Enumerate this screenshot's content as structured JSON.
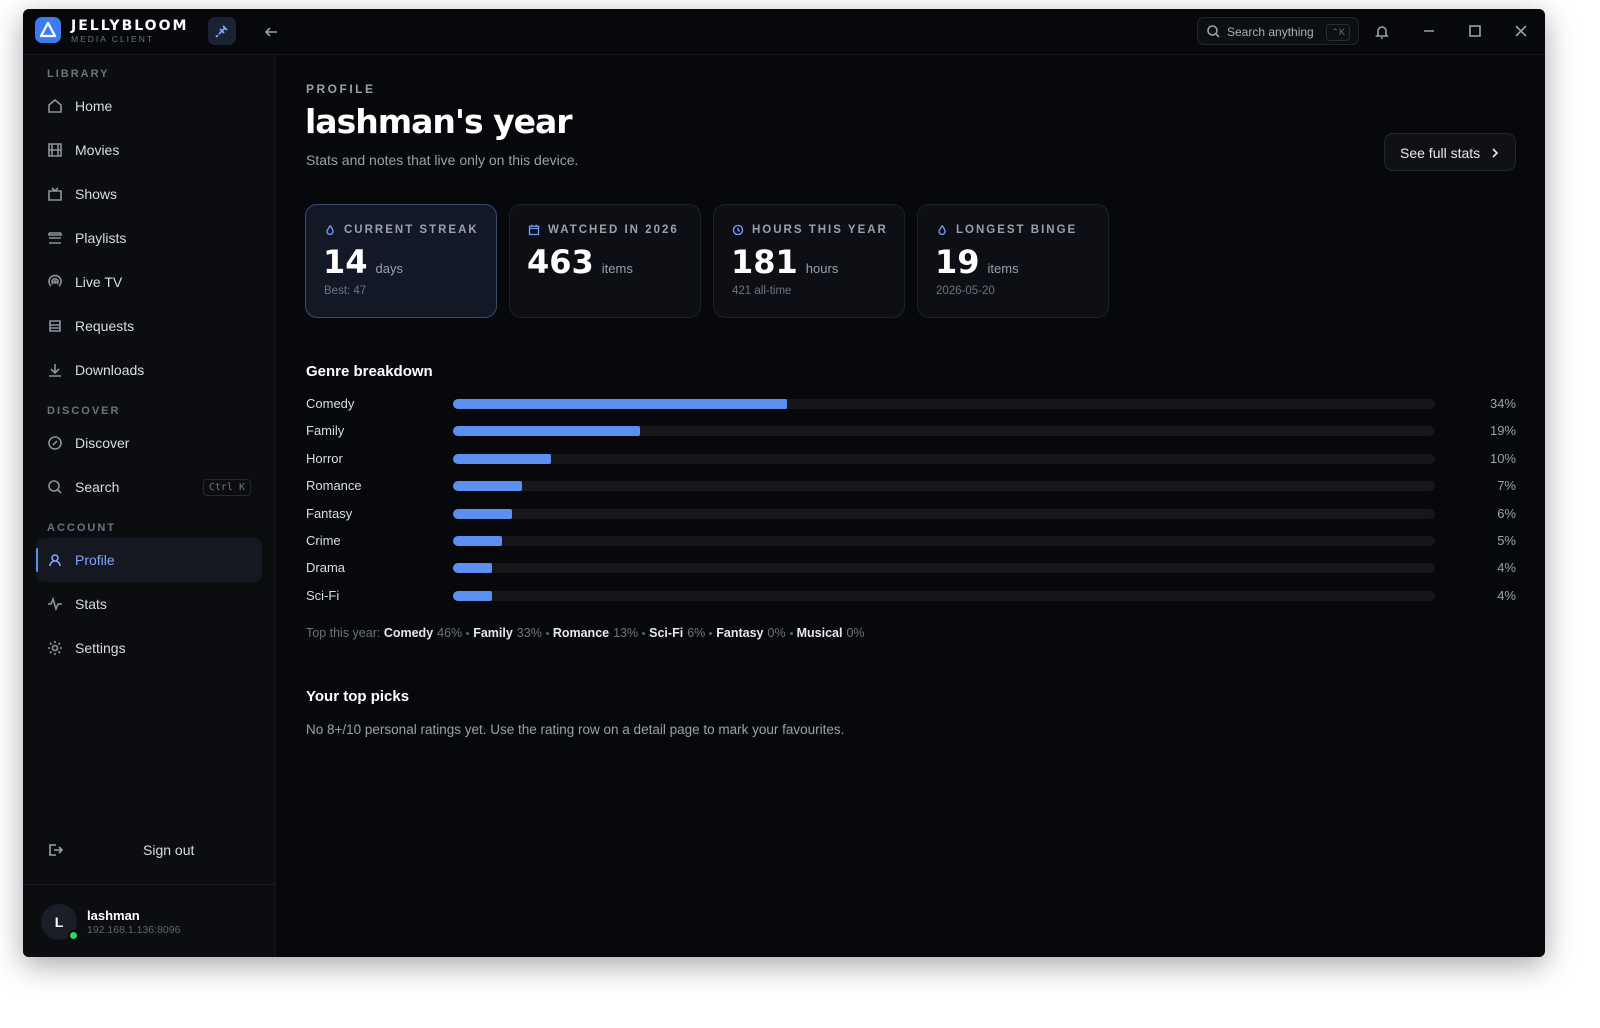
{
  "app": {
    "name": "JELLYBLOOM",
    "subtitle": "MEDIA CLIENT"
  },
  "titlebar": {
    "search_placeholder": "Search anything",
    "search_shortcut": "⌃K"
  },
  "sidebar": {
    "sections": [
      {
        "title": "LIBRARY",
        "items": [
          {
            "label": "Home"
          },
          {
            "label": "Movies"
          },
          {
            "label": "Shows"
          },
          {
            "label": "Playlists"
          },
          {
            "label": "Live TV"
          },
          {
            "label": "Requests"
          },
          {
            "label": "Downloads"
          }
        ]
      },
      {
        "title": "DISCOVER",
        "items": [
          {
            "label": "Discover"
          },
          {
            "label": "Search",
            "shortcut": "Ctrl K"
          }
        ]
      },
      {
        "title": "ACCOUNT",
        "items": [
          {
            "label": "Profile",
            "active": true
          },
          {
            "label": "Stats"
          },
          {
            "label": "Settings"
          }
        ]
      }
    ],
    "sign_out": "Sign out",
    "user": {
      "initial": "L",
      "name": "lashman",
      "server": "192.168.1.136:8096"
    }
  },
  "header": {
    "eyebrow": "PROFILE",
    "title": "lashman's year",
    "subtitle": "Stats and notes that live only on this device.",
    "button": "See full stats"
  },
  "stats": [
    {
      "label": "CURRENT STREAK",
      "value": 14,
      "unit": "days",
      "note": "Best: 47",
      "highlighted": true
    },
    {
      "label": "WATCHED IN 2026",
      "value": 463,
      "unit": "items"
    },
    {
      "label": "HOURS THIS YEAR",
      "value": 181,
      "unit": "hours",
      "note": "421 all-time"
    },
    {
      "label": "LONGEST BINGE",
      "value": 19,
      "unit": "items",
      "note": "2026-05-20"
    }
  ],
  "genre_breakdown": {
    "title": "Genre breakdown",
    "xlim": [
      0,
      100
    ],
    "color": "#5b8ff0",
    "genres": [
      {
        "name": "Comedy",
        "value": 34,
        "label": "34%"
      },
      {
        "name": "Family",
        "value": 19,
        "label": "19%"
      },
      {
        "name": "Horror",
        "value": 10,
        "label": "10%"
      },
      {
        "name": "Romance",
        "value": 7,
        "label": "7%"
      },
      {
        "name": "Fantasy",
        "value": 6,
        "label": "6%"
      },
      {
        "name": "Crime",
        "value": 5,
        "label": "5%"
      },
      {
        "name": "Drama",
        "value": 4,
        "label": "4%"
      },
      {
        "name": "Sci-Fi",
        "value": 4,
        "label": "4%"
      }
    ],
    "top_label": "Top this year:",
    "top": [
      {
        "name": "Comedy",
        "pct": "46%"
      },
      {
        "name": "Family",
        "pct": "33%"
      },
      {
        "name": "Romance",
        "pct": "13%"
      },
      {
        "name": "Sci-Fi",
        "pct": "6%"
      },
      {
        "name": "Fantasy",
        "pct": "0%"
      },
      {
        "name": "Musical",
        "pct": "0%"
      }
    ]
  },
  "top_picks": {
    "title": "Your top picks",
    "text": "No 8+/10 personal ratings yet. Use the rating row on a detail page to mark your favourites."
  }
}
